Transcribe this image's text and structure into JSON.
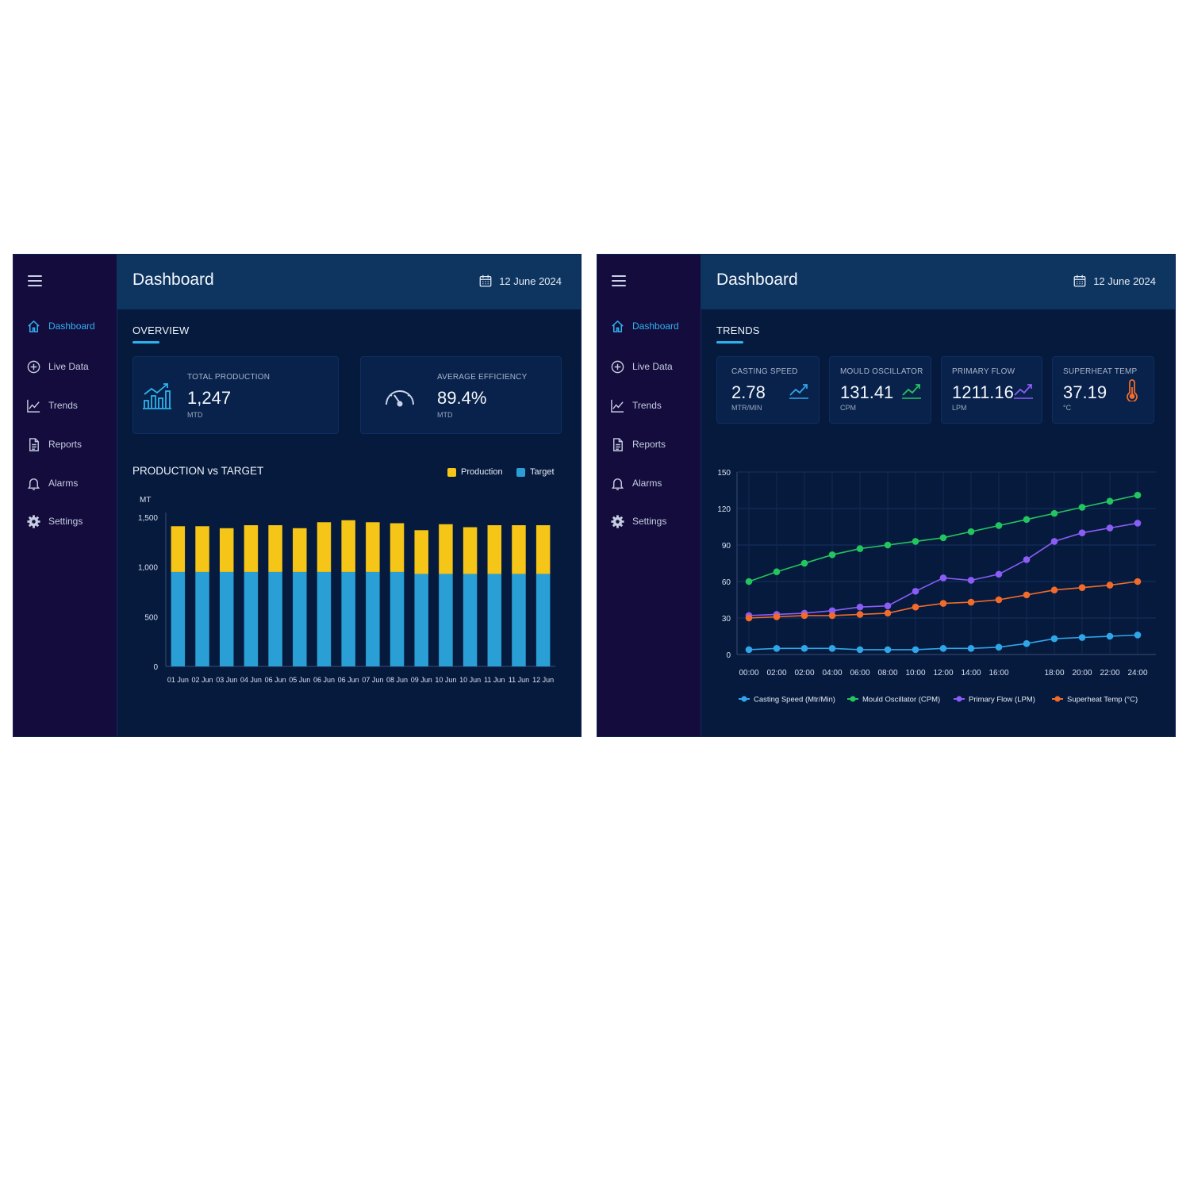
{
  "left": {
    "sidebar": {
      "items": [
        {
          "label": "Dashboard",
          "icon": "home-icon",
          "active": true
        },
        {
          "label": "Live Data",
          "icon": "plus-circle-icon"
        },
        {
          "label": "Trends",
          "icon": "trend-line-icon"
        },
        {
          "label": "Reports",
          "icon": "document-icon"
        },
        {
          "label": "Alarms",
          "icon": "bell-icon"
        },
        {
          "label": "Settings",
          "icon": "gear-icon"
        }
      ]
    },
    "header": {
      "title": "Dashboard",
      "date": "12 June 2024"
    },
    "section": {
      "title": "OVERVIEW"
    },
    "kpis": [
      {
        "label": "TOTAL PRODUCTION",
        "value": "1,247",
        "unit": "MTD",
        "icon": "production-chart-icon"
      },
      {
        "label": "AVERAGE EFFICIENCY",
        "value": "89.4%",
        "unit": "MTD",
        "icon": "gauge-icon"
      }
    ],
    "chart_title": "PRODUCTION vs TARGET",
    "legend": {
      "production": "Production",
      "target": "Target"
    }
  },
  "right": {
    "sidebar": {
      "items": [
        {
          "label": "Dashboard",
          "icon": "home-icon",
          "active": true
        },
        {
          "label": "Live Data",
          "icon": "plus-circle-icon"
        },
        {
          "label": "Trends",
          "icon": "trend-line-icon"
        },
        {
          "label": "Reports",
          "icon": "document-icon"
        },
        {
          "label": "Alarms",
          "icon": "bell-icon"
        },
        {
          "label": "Settings",
          "icon": "gear-icon"
        }
      ]
    },
    "header": {
      "title": "Dashboard",
      "date": "12 June 2024"
    },
    "section": {
      "title": "TRENDS"
    },
    "kpis": [
      {
        "label": "CASTING SPEED",
        "value": "2.78",
        "unit": "MTR/MIN",
        "icon": "trend-up-icon",
        "color": "#2fa6e8"
      },
      {
        "label": "MOULD OSCILLATOR",
        "value": "131.41",
        "unit": "CPM",
        "icon": "trend-up-icon",
        "color": "#22c55e"
      },
      {
        "label": "PRIMARY FLOW",
        "value": "1211.16",
        "unit": "LPM",
        "icon": "trend-up-icon",
        "color": "#8b5cf6"
      },
      {
        "label": "SUPERHEAT TEMP",
        "value": "37.19",
        "unit": "°C",
        "icon": "thermometer-icon",
        "color": "#f26b2a"
      }
    ]
  },
  "colors": {
    "production": "#f5c518",
    "target": "#2a9fd6",
    "casting": "#2fa6e8",
    "mould": "#22c55e",
    "flow": "#8b5cf6",
    "superheat": "#f26b2a"
  },
  "chart_data": [
    {
      "type": "bar",
      "stacked": true,
      "title": "PRODUCTION vs TARGET",
      "ylabel": "MT",
      "ylim": [
        0,
        1500
      ],
      "yticks": [
        0,
        500,
        1000,
        1500
      ],
      "ytick_labels": [
        "0",
        "500",
        "1,000",
        "1,500"
      ],
      "categories": [
        "01 Jun",
        "02 Jun",
        "03 Jun",
        "04 Jun",
        "06 Jun",
        "05 Jun",
        "06 Jun",
        "06 Jun",
        "07 Jun",
        "08 Jun",
        "09 Jun",
        "10 Jun",
        "10 Jun",
        "11 Jun",
        "11 Jun",
        "12 Jun"
      ],
      "series": [
        {
          "name": "Target",
          "color": "#2a9fd6",
          "values": [
            950,
            950,
            950,
            950,
            950,
            950,
            950,
            950,
            950,
            950,
            930,
            930,
            930,
            930,
            930,
            930
          ]
        },
        {
          "name": "Production",
          "color": "#f5c518",
          "values": [
            460,
            460,
            440,
            470,
            470,
            440,
            500,
            520,
            500,
            490,
            440,
            500,
            470,
            490,
            490,
            490
          ]
        }
      ],
      "legend": "top-right",
      "grid": false
    },
    {
      "type": "line",
      "ylim": [
        0,
        150
      ],
      "yticks": [
        0,
        30,
        60,
        90,
        120,
        150
      ],
      "x": [
        "00:00",
        "02:00",
        "02:00",
        "04:00",
        "06:00",
        "08:00",
        "10:00",
        "12:00",
        "14:00",
        "16:00",
        "",
        "18:00",
        "20:00",
        "22:00",
        "24:00"
      ],
      "series": [
        {
          "name": "Casting Speed (Mtr/Min)",
          "color": "#2fa6e8",
          "points": [
            [
              0,
              4
            ],
            [
              1,
              5
            ],
            [
              2,
              5
            ],
            [
              3,
              5
            ],
            [
              4,
              4
            ],
            [
              5,
              4
            ],
            [
              6,
              4
            ],
            [
              7,
              5
            ],
            [
              8,
              5
            ],
            [
              9,
              6
            ],
            [
              10,
              9
            ],
            [
              11,
              13
            ],
            [
              12,
              14
            ],
            [
              13,
              15
            ],
            [
              14,
              16
            ]
          ]
        },
        {
          "name": "Mould Oscillator (CPM)",
          "color": "#22c55e",
          "points": [
            [
              0,
              60
            ],
            [
              1,
              68
            ],
            [
              2,
              75
            ],
            [
              3,
              82
            ],
            [
              4,
              87
            ],
            [
              5,
              90
            ],
            [
              6,
              93
            ],
            [
              7,
              96
            ],
            [
              8,
              101
            ],
            [
              9,
              106
            ],
            [
              10,
              111
            ],
            [
              11,
              116
            ],
            [
              12,
              121
            ],
            [
              13,
              126
            ],
            [
              14,
              131
            ]
          ]
        },
        {
          "name": "Primary Flow (LPM)",
          "color": "#8b5cf6",
          "points": [
            [
              0,
              32
            ],
            [
              1,
              33
            ],
            [
              2,
              34
            ],
            [
              3,
              36
            ],
            [
              4,
              39
            ],
            [
              5,
              40
            ],
            [
              6,
              52
            ],
            [
              7,
              63
            ],
            [
              8,
              61
            ],
            [
              9,
              66
            ],
            [
              10,
              78
            ],
            [
              11,
              93
            ],
            [
              12,
              100
            ],
            [
              13,
              104
            ],
            [
              14,
              108
            ]
          ]
        },
        {
          "name": "Superheat Temp (°C)",
          "color": "#f26b2a",
          "points": [
            [
              0,
              30
            ],
            [
              1,
              31
            ],
            [
              2,
              32
            ],
            [
              3,
              32
            ],
            [
              4,
              33
            ],
            [
              5,
              34
            ],
            [
              6,
              39
            ],
            [
              7,
              42
            ],
            [
              8,
              43
            ],
            [
              9,
              45
            ],
            [
              10,
              49
            ],
            [
              11,
              53
            ],
            [
              12,
              55
            ],
            [
              13,
              57
            ],
            [
              14,
              60
            ]
          ]
        }
      ],
      "legend": "bottom",
      "grid": true
    }
  ]
}
